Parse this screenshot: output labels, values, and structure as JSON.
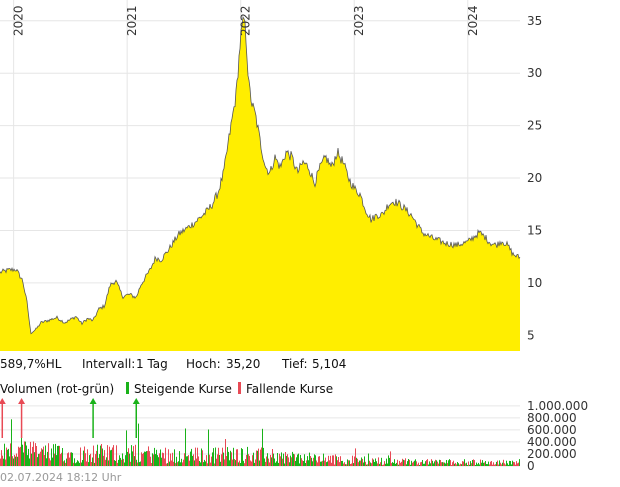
{
  "chart_data": [
    {
      "type": "area",
      "title": "",
      "xlabel": "",
      "ylabel": "",
      "x_ticks": [
        "2020",
        "2021",
        "2022",
        "2023",
        "2024"
      ],
      "x_range": [
        2019.88,
        2024.46
      ],
      "y_ticks": [
        "5",
        "10",
        "15",
        "20",
        "25",
        "30",
        "35"
      ],
      "y_tick_values": [
        5,
        10,
        15,
        20,
        25,
        30,
        35
      ],
      "ylim": [
        3.5,
        36.6
      ],
      "grid": true,
      "fill_color": "#ffee00",
      "line_color": "#555555",
      "series": [
        {
          "x": [
            2019.88,
            2019.95,
            2020.02,
            2020.08,
            2020.12,
            2020.15,
            2020.2,
            2020.24,
            2020.3,
            2020.38,
            2020.45,
            2020.5,
            2020.55,
            2020.6,
            2020.65,
            2020.7,
            2020.75,
            2020.8,
            2020.85,
            2020.9,
            2020.96,
            2021.02,
            2021.08,
            2021.12,
            2021.2,
            2021.25,
            2021.3,
            2021.38,
            2021.45,
            2021.5,
            2021.6,
            2021.7,
            2021.75,
            2021.8,
            2021.85,
            2021.9,
            2021.96,
            2022.0,
            2022.03,
            2022.05,
            2022.07,
            2022.1,
            2022.13,
            2022.18,
            2022.22,
            2022.26,
            2022.3,
            2022.35,
            2022.4,
            2022.45,
            2022.5,
            2022.55,
            2022.6,
            2022.65,
            2022.7,
            2022.75,
            2022.8,
            2022.85,
            2022.9,
            2022.95,
            2023.0,
            2023.05,
            2023.1,
            2023.15,
            2023.2,
            2023.25,
            2023.3,
            2023.35,
            2023.4,
            2023.5,
            2023.6,
            2023.7,
            2023.8,
            2023.9,
            2024.0,
            2024.1,
            2024.15,
            2024.2,
            2024.25,
            2024.3,
            2024.35,
            2024.4,
            2024.46
          ],
          "values": [
            11.0,
            11.2,
            11.3,
            10.2,
            8.0,
            5.2,
            5.6,
            6.2,
            6.4,
            6.7,
            6.2,
            6.5,
            6.8,
            6.1,
            6.6,
            6.4,
            7.5,
            7.8,
            9.8,
            10.2,
            8.7,
            8.9,
            8.6,
            9.8,
            11.2,
            12.4,
            12.2,
            13.4,
            14.6,
            15.0,
            15.8,
            16.8,
            17.5,
            18.6,
            20.5,
            24.0,
            28.0,
            33.5,
            35.2,
            33.0,
            29.0,
            27.0,
            26.0,
            23.0,
            21.0,
            20.5,
            22.0,
            21.0,
            22.5,
            22.0,
            20.5,
            21.5,
            21.0,
            19.5,
            21.0,
            22.0,
            21.0,
            22.5,
            21.5,
            20.0,
            19.0,
            18.5,
            17.0,
            16.0,
            16.5,
            16.5,
            17.5,
            17.8,
            17.5,
            16.5,
            14.8,
            14.2,
            13.8,
            13.6,
            13.9,
            14.8,
            14.4,
            13.8,
            13.6,
            14.0,
            13.6,
            12.7,
            12.4
          ]
        }
      ]
    },
    {
      "type": "bar",
      "title": "",
      "xlabel": "",
      "ylabel": "",
      "y_ticks": [
        "1.000.000",
        "800.000",
        "600.000",
        "400.000",
        "200.000",
        "0"
      ],
      "y_tick_values": [
        1000000,
        800000,
        600000,
        400000,
        200000,
        0
      ],
      "ylim": [
        0,
        1130000
      ],
      "x_range": [
        2019.88,
        2024.46
      ],
      "grid": true,
      "rising_color": "#19b219",
      "falling_color": "#e84a55",
      "outlier_markers": [
        {
          "x": 2019.9,
          "color": "#e84a55"
        },
        {
          "x": 2020.07,
          "color": "#e84a55"
        },
        {
          "x": 2020.7,
          "color": "#19b219"
        },
        {
          "x": 2021.08,
          "color": "#19b219"
        }
      ],
      "volume_profile": {
        "x": [
          2019.88,
          2020.2,
          2020.5,
          2020.8,
          2021.1,
          2021.4,
          2021.7,
          2022.0,
          2022.3,
          2022.6,
          2022.9,
          2023.2,
          2023.6,
          2024.0,
          2024.46
        ],
        "typical": [
          350000,
          330000,
          280000,
          300000,
          290000,
          260000,
          250000,
          280000,
          230000,
          180000,
          150000,
          120000,
          100000,
          90000,
          80000
        ]
      }
    }
  ],
  "info_bar": {
    "performance": "589,7%HL",
    "interval_label": "Intervall:",
    "interval_value": "1 Tag",
    "high_label": "Hoch:",
    "high_value": "35,20",
    "low_label": "Tief:",
    "low_value": "5,104"
  },
  "volume_legend": {
    "title": "Volumen (rot-grün)",
    "rising": "Steigende Kurse",
    "falling": "Fallende Kurse"
  },
  "footer": {
    "timestamp": "02.07.2024 18:12 Uhr"
  }
}
